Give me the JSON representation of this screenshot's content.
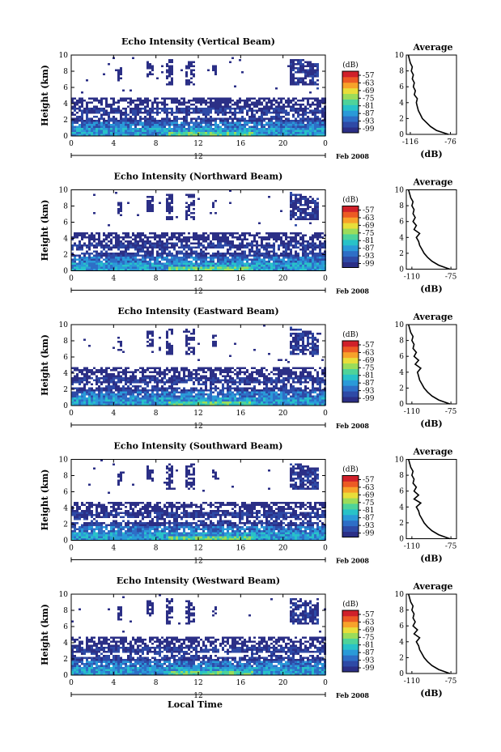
{
  "chart_data": [
    {
      "type": "heatmap",
      "title": "Echo Intensity (Vertical Beam)",
      "beam": "vertical",
      "xlabel": "",
      "ylabel": "Height (km)",
      "x_ticks": [
        "0",
        "4",
        "8",
        "12",
        "16",
        "20",
        "0"
      ],
      "y_ticks": [
        "0",
        "2",
        "4",
        "6",
        "8",
        "10"
      ],
      "xlim": [
        0,
        24
      ],
      "ylim": [
        0,
        10
      ],
      "date_marker": "12",
      "date_label": "Feb 2008",
      "colorbar": {
        "title": "(dB)",
        "ticks": [
          "-57",
          "-63",
          "-69",
          "-75",
          "-81",
          "-87",
          "-93",
          "-99"
        ]
      },
      "average": {
        "title": "Average",
        "xlabel": "(dB)",
        "x_ticks": [
          "-116",
          "-76"
        ],
        "xlim": [
          -120,
          -70
        ],
        "y_ticks": [
          "0",
          "2",
          "4",
          "6",
          "8",
          "10"
        ],
        "profile": [
          [
            -78,
            0
          ],
          [
            -90,
            0.5
          ],
          [
            -96,
            1
          ],
          [
            -100,
            1.5
          ],
          [
            -104,
            2
          ],
          [
            -106,
            2.5
          ],
          [
            -108,
            3
          ],
          [
            -109,
            3.5
          ],
          [
            -110,
            4
          ],
          [
            -109,
            4.5
          ],
          [
            -112,
            5
          ],
          [
            -111,
            5.5
          ],
          [
            -113,
            6
          ],
          [
            -112,
            6.5
          ],
          [
            -114,
            7
          ],
          [
            -113,
            7.5
          ],
          [
            -115,
            8
          ],
          [
            -114,
            8.5
          ],
          [
            -116,
            9
          ],
          [
            -117,
            9.5
          ],
          [
            -118,
            10
          ]
        ]
      }
    },
    {
      "type": "heatmap",
      "title": "Echo Intensity (Northward Beam)",
      "beam": "northward",
      "xlabel": "",
      "ylabel": "Height (km)",
      "x_ticks": [
        "0",
        "4",
        "8",
        "12",
        "16",
        "20",
        "0"
      ],
      "y_ticks": [
        "0",
        "2",
        "4",
        "6",
        "8",
        "10"
      ],
      "xlim": [
        0,
        24
      ],
      "ylim": [
        0,
        10
      ],
      "date_marker": "12",
      "date_label": "Feb 2008",
      "colorbar": {
        "title": "(dB)",
        "ticks": [
          "-57",
          "-63",
          "-69",
          "-75",
          "-81",
          "-87",
          "-93",
          "-99"
        ]
      },
      "average": {
        "title": "Average",
        "xlabel": "(dB)",
        "x_ticks": [
          "-110",
          "-75"
        ],
        "xlim": [
          -115,
          -70
        ],
        "y_ticks": [
          "0",
          "2",
          "4",
          "6",
          "8",
          "10"
        ],
        "profile": [
          [
            -76,
            0
          ],
          [
            -86,
            0.5
          ],
          [
            -92,
            1
          ],
          [
            -96,
            1.5
          ],
          [
            -99,
            2
          ],
          [
            -101,
            2.5
          ],
          [
            -103,
            3
          ],
          [
            -104,
            3.5
          ],
          [
            -106,
            4
          ],
          [
            -103,
            4.5
          ],
          [
            -108,
            5
          ],
          [
            -106,
            5.5
          ],
          [
            -109,
            6
          ],
          [
            -107,
            6.5
          ],
          [
            -109,
            7
          ],
          [
            -108,
            7.5
          ],
          [
            -110,
            8
          ],
          [
            -109,
            8.5
          ],
          [
            -111,
            9
          ],
          [
            -112,
            9.5
          ],
          [
            -113,
            10
          ]
        ]
      }
    },
    {
      "type": "heatmap",
      "title": "Echo Intensity (Eastward Beam)",
      "beam": "eastward",
      "xlabel": "",
      "ylabel": "Height (km)",
      "x_ticks": [
        "0",
        "4",
        "8",
        "12",
        "16",
        "20",
        "0"
      ],
      "y_ticks": [
        "0",
        "2",
        "4",
        "6",
        "8",
        "10"
      ],
      "xlim": [
        0,
        24
      ],
      "ylim": [
        0,
        10
      ],
      "date_marker": "12",
      "date_label": "Feb 2008",
      "colorbar": {
        "title": "(dB)",
        "ticks": [
          "-57",
          "-63",
          "-69",
          "-75",
          "-81",
          "-87",
          "-93",
          "-99"
        ]
      },
      "average": {
        "title": "Average",
        "xlabel": "(dB)",
        "x_ticks": [
          "-110",
          "-75"
        ],
        "xlim": [
          -115,
          -70
        ],
        "y_ticks": [
          "0",
          "2",
          "4",
          "6",
          "8",
          "10"
        ],
        "profile": [
          [
            -76,
            0
          ],
          [
            -86,
            0.5
          ],
          [
            -92,
            1
          ],
          [
            -96,
            1.5
          ],
          [
            -99,
            2
          ],
          [
            -101,
            2.5
          ],
          [
            -103,
            3
          ],
          [
            -104,
            3.5
          ],
          [
            -105,
            4
          ],
          [
            -102,
            4.5
          ],
          [
            -107,
            5
          ],
          [
            -104,
            5.5
          ],
          [
            -108,
            6
          ],
          [
            -106,
            6.5
          ],
          [
            -109,
            7
          ],
          [
            -108,
            7.5
          ],
          [
            -110,
            8
          ],
          [
            -109,
            8.5
          ],
          [
            -111,
            9
          ],
          [
            -112,
            9.5
          ],
          [
            -113,
            10
          ]
        ]
      }
    },
    {
      "type": "heatmap",
      "title": "Echo Intensity (Southward Beam)",
      "beam": "southward",
      "xlabel": "",
      "ylabel": "Height (km)",
      "x_ticks": [
        "0",
        "4",
        "8",
        "12",
        "16",
        "20",
        "0"
      ],
      "y_ticks": [
        "0",
        "2",
        "4",
        "6",
        "8",
        "10"
      ],
      "xlim": [
        0,
        24
      ],
      "ylim": [
        0,
        10
      ],
      "date_marker": "12",
      "date_label": "Feb 2008",
      "colorbar": {
        "title": "(dB)",
        "ticks": [
          "-57",
          "-63",
          "-69",
          "-75",
          "-81",
          "-87",
          "-93",
          "-99"
        ]
      },
      "average": {
        "title": "Average",
        "xlabel": "(dB)",
        "x_ticks": [
          "-110",
          "-75"
        ],
        "xlim": [
          -115,
          -70
        ],
        "y_ticks": [
          "0",
          "2",
          "4",
          "6",
          "8",
          "10"
        ],
        "profile": [
          [
            -76,
            0
          ],
          [
            -86,
            0.5
          ],
          [
            -92,
            1
          ],
          [
            -96,
            1.5
          ],
          [
            -99,
            2
          ],
          [
            -101,
            2.5
          ],
          [
            -103,
            3
          ],
          [
            -104,
            3.5
          ],
          [
            -106,
            4
          ],
          [
            -102,
            4.5
          ],
          [
            -108,
            5
          ],
          [
            -104,
            5.5
          ],
          [
            -108,
            6
          ],
          [
            -106,
            6.5
          ],
          [
            -109,
            7
          ],
          [
            -108,
            7.5
          ],
          [
            -110,
            8
          ],
          [
            -109,
            8.5
          ],
          [
            -111,
            9
          ],
          [
            -112,
            9.5
          ],
          [
            -113,
            10
          ]
        ]
      }
    },
    {
      "type": "heatmap",
      "title": "Echo Intensity (Westward Beam)",
      "beam": "westward",
      "xlabel": "Local Time",
      "ylabel": "Height (km)",
      "x_ticks": [
        "0",
        "4",
        "8",
        "12",
        "16",
        "20",
        "0"
      ],
      "y_ticks": [
        "0",
        "2",
        "4",
        "6",
        "8",
        "10"
      ],
      "xlim": [
        0,
        24
      ],
      "ylim": [
        0,
        10
      ],
      "date_marker": "12",
      "date_label": "Feb 2008",
      "colorbar": {
        "title": "(dB)",
        "ticks": [
          "-57",
          "-63",
          "-69",
          "-75",
          "-81",
          "-87",
          "-93",
          "-99"
        ]
      },
      "average": {
        "title": "Average",
        "xlabel": "(dB)",
        "x_ticks": [
          "-110",
          "-75"
        ],
        "xlim": [
          -115,
          -70
        ],
        "y_ticks": [
          "0",
          "2",
          "4",
          "6",
          "8",
          "10"
        ],
        "profile": [
          [
            -76,
            0
          ],
          [
            -86,
            0.5
          ],
          [
            -92,
            1
          ],
          [
            -96,
            1.5
          ],
          [
            -99,
            2
          ],
          [
            -101,
            2.5
          ],
          [
            -103,
            3
          ],
          [
            -104,
            3.5
          ],
          [
            -106,
            4
          ],
          [
            -103,
            4.5
          ],
          [
            -108,
            5
          ],
          [
            -105,
            5.5
          ],
          [
            -109,
            6
          ],
          [
            -107,
            6.5
          ],
          [
            -109,
            7
          ],
          [
            -108,
            7.5
          ],
          [
            -110,
            8
          ],
          [
            -109,
            8.5
          ],
          [
            -111,
            9
          ],
          [
            -112,
            9.5
          ],
          [
            -113,
            10
          ]
        ]
      }
    }
  ],
  "colors": {
    "colormap": [
      "#2b2f86",
      "#2e4aa6",
      "#2e6ec6",
      "#2a9ad8",
      "#28c2c8",
      "#4ed39a",
      "#9bdc5a",
      "#e8de3a",
      "#f7a22a",
      "#ec5a24",
      "#d0202a"
    ],
    "panel_background": "#ffffff",
    "line": "#000000"
  }
}
